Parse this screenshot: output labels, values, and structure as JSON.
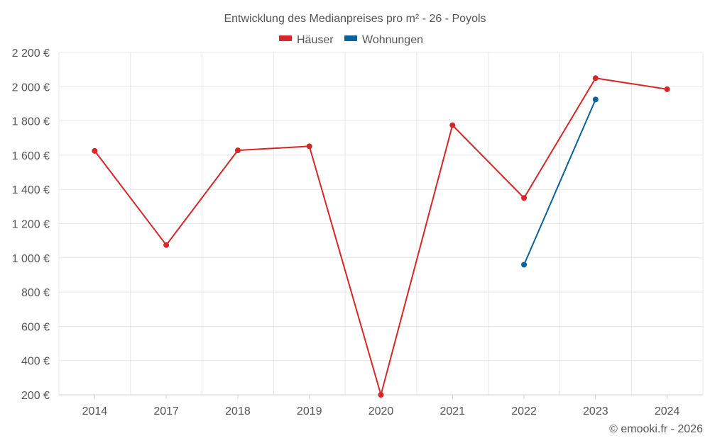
{
  "chart_data": {
    "type": "line",
    "title": "Entwicklung des Medianpreises pro m² - 26 - Poyols",
    "categories": [
      "2014",
      "2017",
      "2018",
      "2019",
      "2020",
      "2021",
      "2022",
      "2023",
      "2024"
    ],
    "y_ticks": [
      "200 €",
      "400 €",
      "600 €",
      "800 €",
      "1 000 €",
      "1 200 €",
      "1 400 €",
      "1 600 €",
      "1 800 €",
      "2 000 €",
      "2 200 €"
    ],
    "ylim": [
      200,
      2200
    ],
    "grid": true,
    "legend_position": "top-center",
    "series": [
      {
        "name": "Häuser",
        "color": "#d62728",
        "values": [
          1625,
          1075,
          1628,
          1652,
          200,
          1775,
          1350,
          2050,
          1985
        ]
      },
      {
        "name": "Wohnungen",
        "color": "#08639c",
        "values": [
          null,
          null,
          null,
          null,
          null,
          null,
          960,
          1925,
          null
        ]
      }
    ],
    "credit": "© emooki.fr - 2026"
  }
}
